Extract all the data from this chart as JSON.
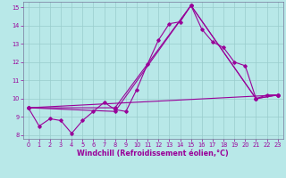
{
  "xlabel": "Windchill (Refroidissement éolien,°C)",
  "background_color": "#b8e8e8",
  "grid_color": "#99cccc",
  "line_color": "#990099",
  "xlim": [
    -0.5,
    23.5
  ],
  "ylim": [
    7.8,
    15.3
  ],
  "yticks": [
    8,
    9,
    10,
    11,
    12,
    13,
    14,
    15
  ],
  "xticks": [
    0,
    1,
    2,
    3,
    4,
    5,
    6,
    7,
    8,
    9,
    10,
    11,
    12,
    13,
    14,
    15,
    16,
    17,
    18,
    19,
    20,
    21,
    22,
    23
  ],
  "line1_x": [
    0,
    1,
    2,
    3,
    4,
    5,
    6,
    7,
    8,
    9,
    10,
    11,
    12,
    13,
    14,
    15,
    16,
    17,
    18,
    19,
    20,
    21,
    22,
    23
  ],
  "line1_y": [
    9.5,
    8.5,
    8.9,
    8.8,
    8.1,
    8.8,
    9.3,
    9.8,
    9.4,
    9.3,
    10.5,
    11.9,
    13.2,
    14.1,
    14.2,
    15.1,
    13.8,
    13.1,
    12.8,
    12.0,
    11.8,
    10.0,
    10.2,
    10.2
  ],
  "line2_x": [
    0,
    8,
    15,
    21,
    23
  ],
  "line2_y": [
    9.5,
    9.5,
    15.1,
    10.0,
    10.2
  ],
  "line3_x": [
    0,
    8,
    15,
    21,
    23
  ],
  "line3_y": [
    9.5,
    9.3,
    15.1,
    10.0,
    10.2
  ],
  "line4_x": [
    0,
    23
  ],
  "line4_y": [
    9.5,
    10.2
  ],
  "markersize": 1.8,
  "linewidth": 0.8,
  "tick_fontsize": 4.8,
  "label_fontsize": 5.8
}
